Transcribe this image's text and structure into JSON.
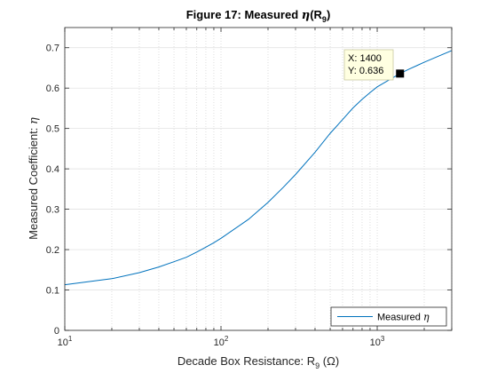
{
  "chart_data": {
    "type": "line",
    "title_parts": [
      "Figure 17: Measured ",
      "η",
      "(R",
      "9",
      ")"
    ],
    "xlabel_parts": [
      "Decade Box Resistance: R",
      "9",
      " (Ω)"
    ],
    "ylabel_parts": [
      "Measured Coefficient: ",
      "η"
    ],
    "x_scale": "log",
    "xlim": [
      10,
      3000
    ],
    "ylim": [
      0,
      0.75
    ],
    "y_ticks": [
      "0",
      "0.1",
      "0.2",
      "0.3",
      "0.4",
      "0.5",
      "0.6",
      "0.7"
    ],
    "x_ticks": [
      {
        "base": "10",
        "exp": "1",
        "value": 10
      },
      {
        "base": "10",
        "exp": "2",
        "value": 100
      },
      {
        "base": "10",
        "exp": "3",
        "value": 1000
      }
    ],
    "grid": "minor-x dotted, major y",
    "legend_position": "bottom-right",
    "series": [
      {
        "name_parts": [
          "Measured ",
          "η"
        ],
        "color": "#0072BD",
        "x": [
          10,
          20,
          30,
          40,
          50,
          60,
          70,
          80,
          90,
          100,
          150,
          200,
          250,
          300,
          400,
          500,
          600,
          700,
          800,
          900,
          1000,
          1200,
          1400,
          1600,
          1800,
          2000,
          2500,
          3000
        ],
        "y": [
          0.113,
          0.128,
          0.143,
          0.157,
          0.17,
          0.181,
          0.194,
          0.206,
          0.217,
          0.228,
          0.275,
          0.317,
          0.354,
          0.386,
          0.441,
          0.488,
          0.522,
          0.551,
          0.572,
          0.589,
          0.603,
          0.621,
          0.636,
          0.647,
          0.656,
          0.664,
          0.68,
          0.693
        ]
      }
    ],
    "datatip": {
      "x_label": "X: 1400",
      "y_label": "Y: 0.636",
      "x": 1400,
      "y": 0.636
    }
  }
}
